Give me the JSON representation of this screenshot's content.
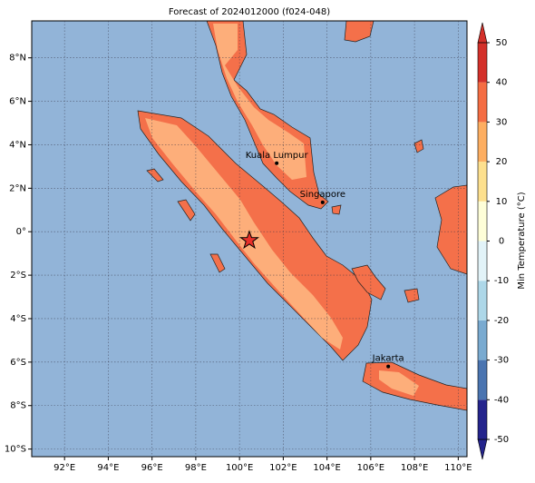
{
  "chart_data": {
    "type": "map",
    "title": "Forecast of 2024012000 (f024-048)",
    "xlim": [
      90.5,
      110.4
    ],
    "ylim": [
      -10.35,
      9.7
    ],
    "xticks": [
      {
        "value": 92,
        "label": "92°E"
      },
      {
        "value": 94,
        "label": "94°E"
      },
      {
        "value": 96,
        "label": "96°E"
      },
      {
        "value": 98,
        "label": "98°E"
      },
      {
        "value": 100,
        "label": "100°E"
      },
      {
        "value": 102,
        "label": "102°E"
      },
      {
        "value": 104,
        "label": "104°E"
      },
      {
        "value": 106,
        "label": "106°E"
      },
      {
        "value": 108,
        "label": "108°E"
      },
      {
        "value": 110,
        "label": "110°E"
      }
    ],
    "yticks": [
      {
        "value": 8,
        "label": "8°N"
      },
      {
        "value": 6,
        "label": "6°N"
      },
      {
        "value": 4,
        "label": "4°N"
      },
      {
        "value": 2,
        "label": "2°N"
      },
      {
        "value": 0,
        "label": "0°"
      },
      {
        "value": -2,
        "label": "2°S"
      },
      {
        "value": -4,
        "label": "4°S"
      },
      {
        "value": -6,
        "label": "6°S"
      },
      {
        "value": -8,
        "label": "8°S"
      },
      {
        "value": -10,
        "label": "10°S"
      }
    ],
    "grid": true,
    "cities": [
      {
        "name": "Kuala Lumpur",
        "lon": 101.7,
        "lat": 3.15
      },
      {
        "name": "Singapore",
        "lon": 103.8,
        "lat": 1.35
      },
      {
        "name": "Jakarta",
        "lon": 106.8,
        "lat": -6.2
      }
    ],
    "star": {
      "lon": 100.45,
      "lat": -0.4
    },
    "colorbar": {
      "label": "Min Temperature (°C)",
      "ticks": [
        -50,
        -40,
        -30,
        -20,
        -10,
        0,
        10,
        20,
        30,
        40,
        50
      ],
      "colors": [
        "#24248c",
        "#4a74b0",
        "#79aad0",
        "#add7e8",
        "#e2f3f8",
        "#fefed8",
        "#fde08e",
        "#fdae61",
        "#f46d43",
        "#d3302a"
      ]
    }
  }
}
